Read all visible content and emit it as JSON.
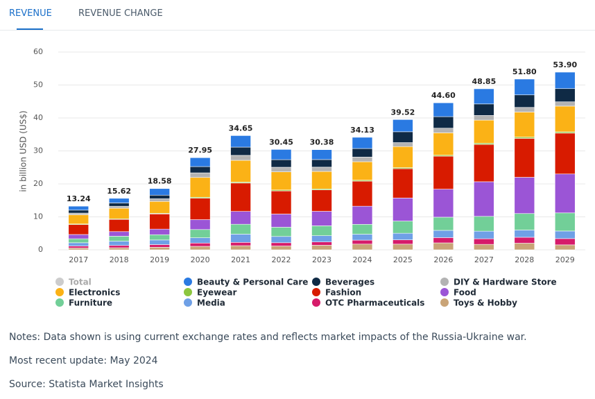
{
  "tabs": [
    "REVENUE",
    "REVENUE CHANGE"
  ],
  "notes": [
    "Notes: Data shown is using current exchange rates and reflects market impacts of the Russia-Ukraine war.",
    "Most recent update: May 2024",
    "Source: Statista Market Insights"
  ],
  "chart_data": {
    "type": "stacked_bar",
    "y_label": "in billion USD (US$)",
    "categories": [
      "2017",
      "2018",
      "2019",
      "2020",
      "2021",
      "2022",
      "2023",
      "2024",
      "2025",
      "2026",
      "2027",
      "2028",
      "2029"
    ],
    "ylim": [
      0,
      60
    ],
    "yticks": [
      0,
      10,
      20,
      30,
      40,
      50,
      60
    ],
    "grid": true,
    "series": [
      {
        "name": "Total",
        "color": "#cccccc",
        "visible": false,
        "values": [
          13.24,
          15.62,
          18.58,
          27.95,
          34.65,
          30.45,
          30.38,
          34.13,
          39.52,
          44.6,
          48.85,
          51.8,
          53.9
        ],
        "value_labels": [
          "13.24",
          "15.62",
          "18.58",
          "27.95",
          "34.65",
          "30.45",
          "30.38",
          "34.13",
          "39.52",
          "44.60",
          "48.85",
          "51.80",
          "53.90"
        ]
      },
      {
        "name": "Beauty & Personal Care",
        "color": "#2a7ae2",
        "values": [
          1.2,
          1.4,
          2.0,
          2.7,
          3.5,
          3.1,
          3.0,
          3.4,
          3.7,
          4.2,
          4.6,
          4.8,
          5.0
        ]
      },
      {
        "name": "Beverages",
        "color": "#0f2a45",
        "values": [
          0.9,
          1.0,
          1.1,
          1.9,
          2.5,
          2.3,
          2.3,
          2.6,
          3.3,
          3.5,
          3.5,
          3.8,
          4.0
        ]
      },
      {
        "name": "DIY & Hardware Store",
        "color": "#b3b3b3",
        "values": [
          0.5,
          0.6,
          0.8,
          1.4,
          1.5,
          1.4,
          1.3,
          1.4,
          1.2,
          1.4,
          1.4,
          1.4,
          1.3
        ]
      },
      {
        "name": "Electronics",
        "color": "#fbb216",
        "values": [
          2.8,
          3.2,
          3.6,
          6.0,
          6.6,
          5.5,
          5.3,
          5.6,
          6.4,
          6.8,
          7.0,
          7.6,
          7.8
        ]
      },
      {
        "name": "Eyewear",
        "color": "#8cc63f",
        "values": [
          0.2,
          0.2,
          0.2,
          0.3,
          0.3,
          0.3,
          0.3,
          0.3,
          0.3,
          0.3,
          0.4,
          0.4,
          0.4
        ]
      },
      {
        "name": "Fashion",
        "color": "#d81b00",
        "values": [
          3.0,
          3.7,
          4.6,
          6.5,
          8.6,
          7.0,
          6.5,
          7.6,
          8.9,
          10.0,
          11.3,
          11.8,
          12.4
        ]
      },
      {
        "name": "Food",
        "color": "#9b55d6",
        "values": [
          1.3,
          1.4,
          1.7,
          3.0,
          3.9,
          4.0,
          4.4,
          5.5,
          7.0,
          8.5,
          10.5,
          11.0,
          11.8
        ]
      },
      {
        "name": "Furniture",
        "color": "#72cf98",
        "values": [
          1.2,
          1.5,
          1.6,
          2.5,
          3.0,
          2.8,
          3.0,
          3.0,
          3.7,
          4.0,
          4.5,
          5.0,
          5.5
        ]
      },
      {
        "name": "Media",
        "color": "#6fa0e6",
        "values": [
          1.0,
          1.3,
          1.4,
          1.6,
          2.5,
          1.9,
          1.9,
          1.8,
          2.0,
          2.2,
          2.3,
          2.2,
          2.3
        ]
      },
      {
        "name": "OTC Pharmaceuticals",
        "color": "#d61b6a",
        "values": [
          0.6,
          0.7,
          0.8,
          1.0,
          1.0,
          1.0,
          1.0,
          1.2,
          1.3,
          1.6,
          1.7,
          1.8,
          1.9
        ]
      },
      {
        "name": "Toys & Hobby",
        "color": "#c9a477",
        "values": [
          0.54,
          0.62,
          0.78,
          1.05,
          1.25,
          1.15,
          1.38,
          1.73,
          1.72,
          2.1,
          1.65,
          2.0,
          1.5
        ]
      }
    ]
  }
}
